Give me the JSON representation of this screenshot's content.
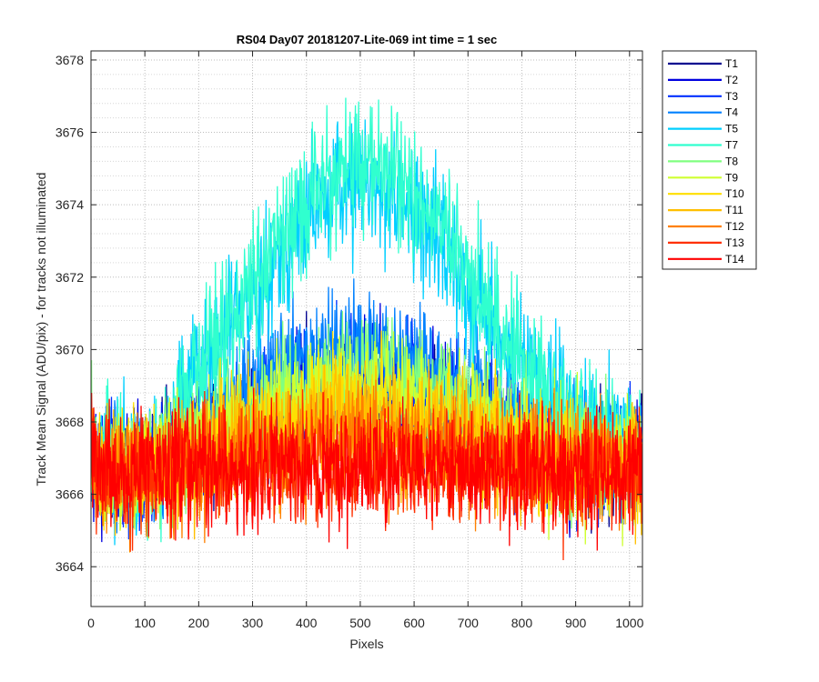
{
  "chart_data": {
    "type": "line",
    "title": "RS04 Day07 20181207-Lite-069 int time = 1 sec",
    "xlabel": "Pixels",
    "ylabel": "Track Mean Signal (ADU/pix) - for tracks not illuminated",
    "xlim": [
      0,
      1024
    ],
    "ylim": [
      3662.9,
      3678.25
    ],
    "xticks": [
      0,
      100,
      200,
      300,
      400,
      500,
      600,
      700,
      800,
      900,
      1000
    ],
    "yticks": [
      3664,
      3666,
      3668,
      3670,
      3672,
      3674,
      3676,
      3678
    ],
    "x_tick_labels": [
      "0",
      "100",
      "200",
      "300",
      "400",
      "500",
      "600",
      "700",
      "800",
      "900",
      "1000"
    ],
    "y_tick_labels": [
      "3664",
      "3666",
      "3668",
      "3670",
      "3672",
      "3674",
      "3676",
      "3678"
    ],
    "grid": "dotted",
    "minor_grid_y": true,
    "legend_position": "outside-right",
    "n_points": 1024,
    "series": [
      {
        "name": "T1",
        "color": "#00008f",
        "baseline": 3666.7,
        "peak": 2.2,
        "noise": 0.8
      },
      {
        "name": "T2",
        "color": "#0000df",
        "baseline": 3666.7,
        "peak": 2.4,
        "noise": 0.8
      },
      {
        "name": "T3",
        "color": "#0030ff",
        "baseline": 3666.7,
        "peak": 2.6,
        "noise": 0.8
      },
      {
        "name": "T4",
        "color": "#0080ff",
        "baseline": 3666.8,
        "peak": 3.3,
        "noise": 0.8
      },
      {
        "name": "T5",
        "color": "#00cfff",
        "baseline": 3666.8,
        "peak": 7.8,
        "noise": 0.9
      },
      {
        "name": "T7",
        "color": "#30ffcf",
        "baseline": 3666.8,
        "peak": 8.3,
        "noise": 0.9
      },
      {
        "name": "T8",
        "color": "#80ff80",
        "baseline": 3666.7,
        "peak": 2.7,
        "noise": 0.8
      },
      {
        "name": "T9",
        "color": "#cfff30",
        "baseline": 3666.7,
        "peak": 2.2,
        "noise": 0.8
      },
      {
        "name": "T10",
        "color": "#ffdf00",
        "baseline": 3666.7,
        "peak": 1.6,
        "noise": 0.8
      },
      {
        "name": "T11",
        "color": "#ffbf00",
        "baseline": 3666.7,
        "peak": 1.2,
        "noise": 0.8
      },
      {
        "name": "T12",
        "color": "#ff8000",
        "baseline": 3666.6,
        "peak": 0.8,
        "noise": 0.8
      },
      {
        "name": "T13",
        "color": "#ff3000",
        "baseline": 3666.6,
        "peak": 0.3,
        "noise": 0.8
      },
      {
        "name": "T14",
        "color": "#ff0000",
        "baseline": 3666.6,
        "peak": 0.1,
        "noise": 0.8
      }
    ]
  }
}
